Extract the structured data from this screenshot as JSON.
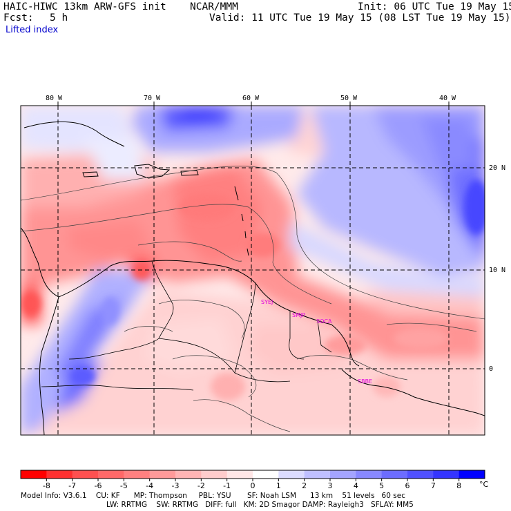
{
  "header": {
    "model_title": "HAIC-HIWC 13km ARW-GFS init",
    "org": "NCAR/MMM",
    "init": "Init: 06 UTC Tue 19 May 15",
    "fcst_label": "Fcst:",
    "fcst_value": "5 h",
    "valid": "Valid: 11 UTC Tue 19 May 15 (08 LST Tue 19 May 15)",
    "field": "Lifted index"
  },
  "map": {
    "lon_labels": [
      "80 W",
      "70 W",
      "60 W",
      "50 W",
      "40 W"
    ],
    "lat_labels": [
      "20 N",
      "10 N",
      "0"
    ],
    "stations": [
      "SBBE",
      "SMJP",
      "SOCA",
      "SYEJ"
    ]
  },
  "colorbar": {
    "labels": [
      "-8",
      "-7",
      "-6",
      "-5",
      "-4",
      "-3",
      "-2",
      "-1",
      "0",
      "1",
      "2",
      "3",
      "4",
      "5",
      "6",
      "7",
      "8"
    ],
    "unit": "°C",
    "colors": [
      "#ff0000",
      "#ff3030",
      "#ff5050",
      "#ff6868",
      "#ff8080",
      "#ff9a9a",
      "#ffb4b4",
      "#ffcccc",
      "#ffe6e6",
      "#ffffff",
      "#dcdcff",
      "#c0c0ff",
      "#a4a4ff",
      "#8888ff",
      "#6c6cff",
      "#5050ff",
      "#3434ff",
      "#0000ff"
    ]
  },
  "footer": {
    "line1": "Model Info: V3.6.1    CU: KF      MP: Thompson     PBL: YSU       SF: Noah LSM      13 km    51 levels   60 sec",
    "line2": "LW: RRTMG    SW: RRTMG   DIFF: full   KM: 2D Smagor DAMP: Rayleigh3   SFLAY: MM5"
  }
}
